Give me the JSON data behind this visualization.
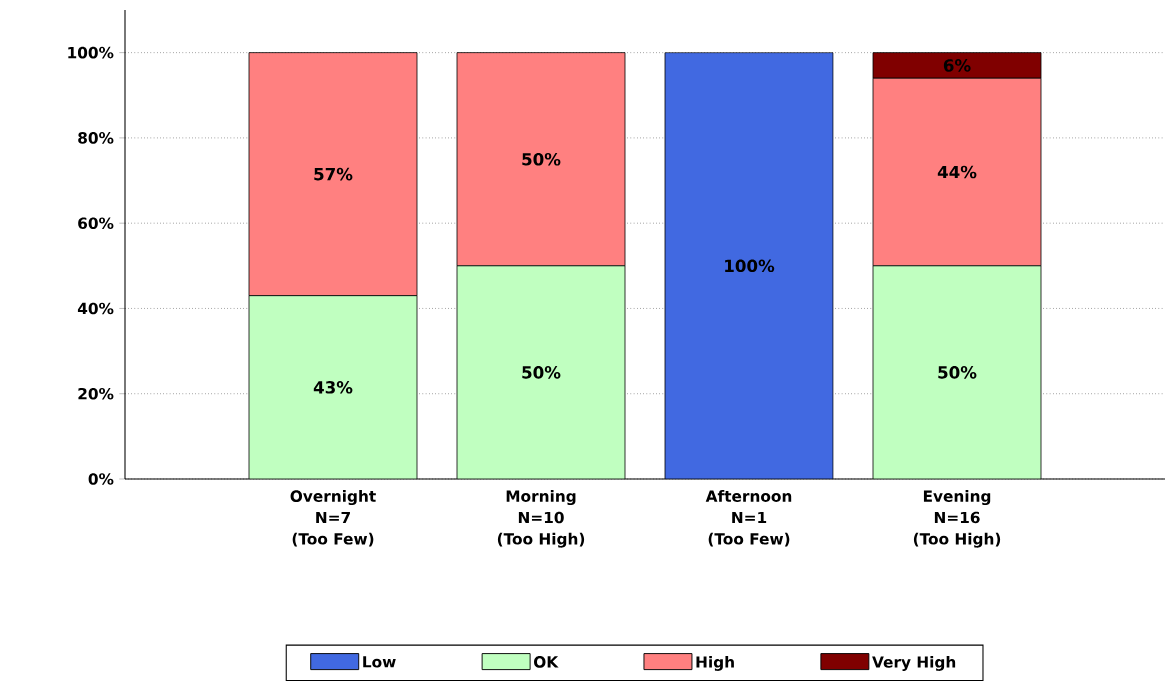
{
  "chart_data": {
    "type": "bar",
    "stacked": true,
    "categories": [
      "Overnight\nN=7\n(Too Few)",
      "Morning\nN=10\n(Too High)",
      "Afternoon\nN=1\n(Too Few)",
      "Evening\nN=16\n(Too High)"
    ],
    "series": [
      {
        "name": "Low",
        "color": "#4169e1",
        "values": [
          0,
          0,
          100,
          0
        ],
        "value_labels": [
          null,
          null,
          "100%",
          null
        ]
      },
      {
        "name": "OK",
        "color": "#c0ffc0",
        "values": [
          43,
          50,
          0,
          50
        ],
        "value_labels": [
          "43%",
          "50%",
          null,
          "50%"
        ]
      },
      {
        "name": "High",
        "color": "#ff8080",
        "values": [
          57,
          50,
          0,
          44
        ],
        "value_labels": [
          "57%",
          "50%",
          null,
          "44%"
        ]
      },
      {
        "name": "Very High",
        "color": "#800000",
        "values": [
          0,
          0,
          0,
          6
        ],
        "value_labels": [
          null,
          null,
          null,
          "6%"
        ]
      }
    ],
    "ylim": [
      0,
      110
    ],
    "yticks": [
      {
        "value": 0,
        "label": "0%"
      },
      {
        "value": 20,
        "label": "20%"
      },
      {
        "value": 40,
        "label": "40%"
      },
      {
        "value": 60,
        "label": "60%"
      },
      {
        "value": 80,
        "label": "80%"
      },
      {
        "value": 100,
        "label": "100%"
      }
    ],
    "grid": "y",
    "legend": "bottom"
  }
}
